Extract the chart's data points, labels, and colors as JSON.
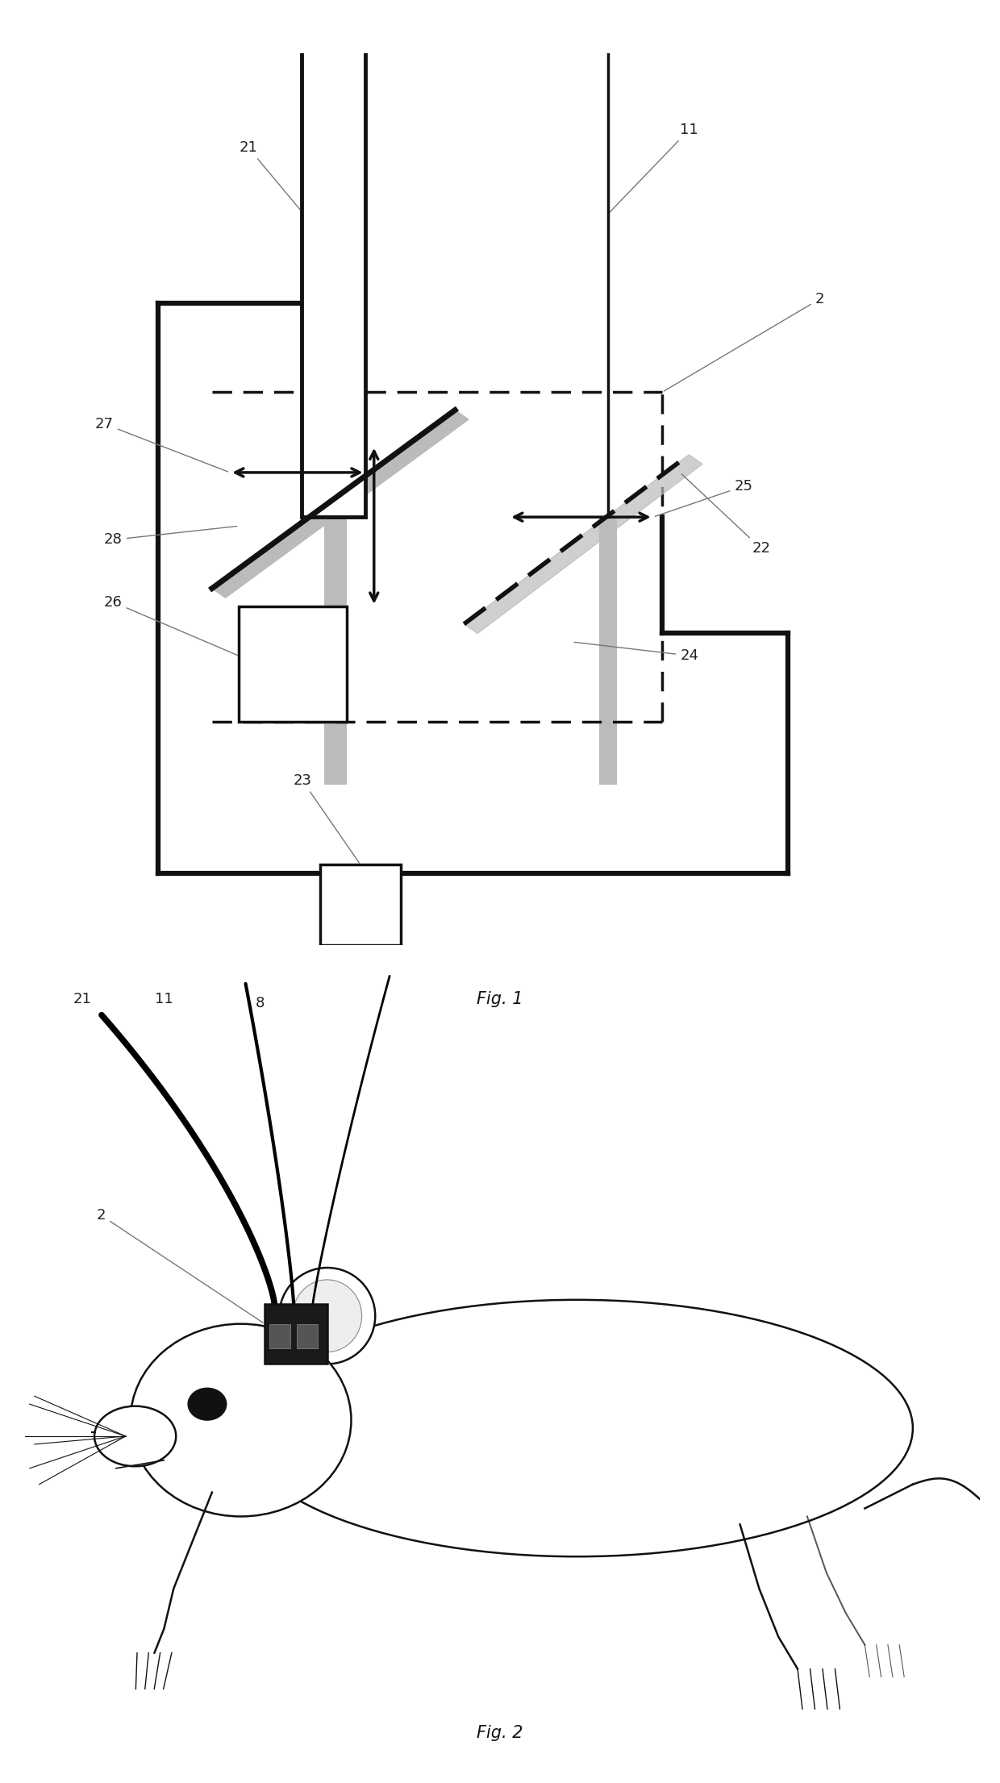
{
  "fig1_caption": "Fig. 1",
  "fig2_caption": "Fig. 2",
  "line_color": "#111111",
  "background": "#ffffff",
  "label_fontsize": 13,
  "caption_fontsize": 15,
  "gray_color": "#bbbbbb",
  "dark_gray": "#555555"
}
